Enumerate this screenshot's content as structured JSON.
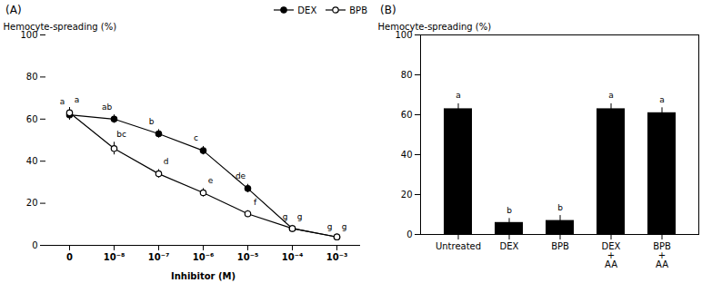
{
  "chart_data": [
    {
      "type": "line",
      "title": "(A)",
      "xlabel": "Inhibitor (M)",
      "ylabel": "Hemocyte-spreading (%)",
      "categories": [
        "0",
        "10⁻⁸",
        "10⁻⁷",
        "10⁻⁶",
        "10⁻⁵",
        "10⁻⁴",
        "10⁻³"
      ],
      "series": [
        {
          "name": "DEX",
          "color": "black",
          "marker": "filled circle",
          "values": [
            62,
            60,
            53,
            45,
            27,
            8,
            4
          ],
          "errors": [
            2.5,
            2,
            2,
            2,
            2,
            1.5,
            1
          ],
          "stat_labels": [
            "a",
            "ab",
            "b",
            "c",
            "de",
            "g",
            "g"
          ]
        },
        {
          "name": "BPB",
          "color": "black",
          "marker": "open circle",
          "values": [
            63,
            46,
            34,
            25,
            15,
            8,
            4
          ],
          "errors": [
            2.5,
            3,
            2,
            2,
            1.5,
            1.5,
            1
          ],
          "stat_labels": [
            "a",
            "bc",
            "d",
            "e",
            "f",
            "g",
            "g"
          ]
        }
      ],
      "ylim": [
        0,
        100
      ],
      "yticks": [
        0,
        20,
        40,
        60,
        80,
        100
      ],
      "legend": "upper right",
      "grid": false
    },
    {
      "type": "bar",
      "title": "(B)",
      "ylabel": "Hemocyte-spreading (%)",
      "categories": [
        "Untreated",
        "DEX",
        "BPB",
        "DEX\n+\nAA",
        "BPB\n+\nAA"
      ],
      "values": [
        63,
        6,
        7,
        63,
        61
      ],
      "errors": [
        2.5,
        2,
        2.5,
        2.5,
        2.5
      ],
      "stat_labels": [
        "a",
        "b",
        "b",
        "a",
        "a"
      ],
      "color": "#000000",
      "ylim": [
        0,
        100
      ],
      "yticks": [
        0,
        20,
        40,
        60,
        80,
        100
      ],
      "grid": false
    }
  ]
}
